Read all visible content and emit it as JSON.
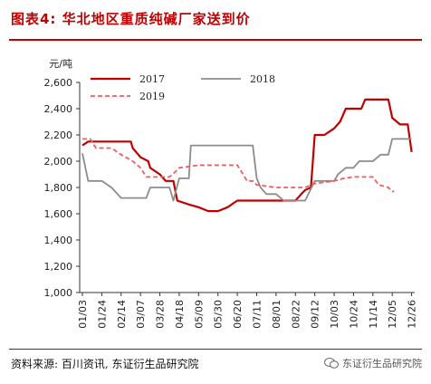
{
  "header": {
    "title": "图表4: 华北地区重质纯碱厂家送到价"
  },
  "footer": {
    "source": "资料来源: 百川资讯, 东证衍生品研究院",
    "brand": "东证衍生品研究院"
  },
  "chart_data": {
    "type": "line",
    "ylabel": "元/吨",
    "ylim": [
      1000,
      2600
    ],
    "yticks": [
      1000,
      1200,
      1400,
      1600,
      1800,
      2000,
      2200,
      2400,
      2600
    ],
    "categories": [
      "01/03",
      "01/24",
      "02/14",
      "03/07",
      "03/28",
      "04/18",
      "05/09",
      "05/30",
      "06/20",
      "07/11",
      "08/01",
      "08/22",
      "09/12",
      "10/03",
      "10/24",
      "11/14",
      "12/05",
      "12/26"
    ],
    "legend_position": "top-center",
    "grid": false,
    "series": [
      {
        "name": "2017",
        "color": "#c00000",
        "style": "solid",
        "points": [
          [
            0,
            2120
          ],
          [
            0.3,
            2150
          ],
          [
            1,
            2150
          ],
          [
            2,
            2150
          ],
          [
            2.5,
            2150
          ],
          [
            2.6,
            2100
          ],
          [
            3,
            2030
          ],
          [
            3.4,
            2000
          ],
          [
            3.5,
            1950
          ],
          [
            4,
            1900
          ],
          [
            4.3,
            1850
          ],
          [
            4.7,
            1850
          ],
          [
            4.9,
            1700
          ],
          [
            5.5,
            1670
          ],
          [
            6,
            1650
          ],
          [
            6.5,
            1620
          ],
          [
            7,
            1620
          ],
          [
            7.5,
            1650
          ],
          [
            7.8,
            1680
          ],
          [
            8,
            1700
          ],
          [
            9,
            1700
          ],
          [
            10,
            1700
          ],
          [
            11,
            1700
          ],
          [
            11.3,
            1750
          ],
          [
            11.5,
            1780
          ],
          [
            11.8,
            1800
          ],
          [
            12,
            2200
          ],
          [
            12.5,
            2200
          ],
          [
            13,
            2250
          ],
          [
            13.3,
            2300
          ],
          [
            13.6,
            2400
          ],
          [
            14,
            2400
          ],
          [
            14.4,
            2400
          ],
          [
            14.6,
            2470
          ],
          [
            15,
            2470
          ],
          [
            15.5,
            2470
          ],
          [
            15.8,
            2470
          ],
          [
            16,
            2330
          ],
          [
            16.4,
            2280
          ],
          [
            16.8,
            2280
          ],
          [
            17,
            2070
          ]
        ]
      },
      {
        "name": "2018",
        "color": "#8c8c8c",
        "style": "solid",
        "points": [
          [
            0,
            2060
          ],
          [
            0.3,
            1850
          ],
          [
            1,
            1850
          ],
          [
            1.5,
            1800
          ],
          [
            2,
            1720
          ],
          [
            2.6,
            1720
          ],
          [
            3,
            1720
          ],
          [
            3.3,
            1720
          ],
          [
            3.5,
            1800
          ],
          [
            4,
            1800
          ],
          [
            4.5,
            1800
          ],
          [
            4.7,
            1700
          ],
          [
            5,
            1870
          ],
          [
            5.5,
            1870
          ],
          [
            5.6,
            2120
          ],
          [
            6,
            2120
          ],
          [
            7,
            2120
          ],
          [
            8,
            2120
          ],
          [
            8.8,
            2120
          ],
          [
            9,
            1870
          ],
          [
            9.2,
            1800
          ],
          [
            9.5,
            1750
          ],
          [
            10,
            1750
          ],
          [
            10.4,
            1700
          ],
          [
            11,
            1700
          ],
          [
            11.5,
            1700
          ],
          [
            12,
            1850
          ],
          [
            13,
            1850
          ],
          [
            13.2,
            1900
          ],
          [
            13.6,
            1950
          ],
          [
            14,
            1950
          ],
          [
            14.3,
            2000
          ],
          [
            15,
            2000
          ],
          [
            15.4,
            2050
          ],
          [
            15.8,
            2050
          ],
          [
            16,
            2170
          ],
          [
            16.5,
            2170
          ],
          [
            17,
            2170
          ]
        ]
      },
      {
        "name": "2019",
        "color": "#f25c5c",
        "style": "dashed",
        "points": [
          [
            0,
            2170
          ],
          [
            0.4,
            2170
          ],
          [
            0.7,
            2100
          ],
          [
            1.5,
            2100
          ],
          [
            2,
            2050
          ],
          [
            2.6,
            2000
          ],
          [
            3,
            1950
          ],
          [
            3.3,
            1880
          ],
          [
            4,
            1880
          ],
          [
            4.5,
            1880
          ],
          [
            4.8,
            1920
          ],
          [
            5,
            1950
          ],
          [
            6,
            1970
          ],
          [
            7,
            1970
          ],
          [
            8,
            1970
          ],
          [
            8.3,
            1900
          ],
          [
            8.5,
            1850
          ],
          [
            8.8,
            1850
          ],
          [
            9,
            1820
          ],
          [
            10,
            1800
          ],
          [
            11,
            1800
          ],
          [
            11.5,
            1800
          ],
          [
            12,
            1830
          ],
          [
            13,
            1850
          ],
          [
            13.5,
            1870
          ],
          [
            14,
            1880
          ],
          [
            15,
            1880
          ],
          [
            15.3,
            1820
          ],
          [
            15.8,
            1800
          ],
          [
            16,
            1770
          ],
          [
            16.1,
            1770
          ]
        ]
      }
    ]
  }
}
